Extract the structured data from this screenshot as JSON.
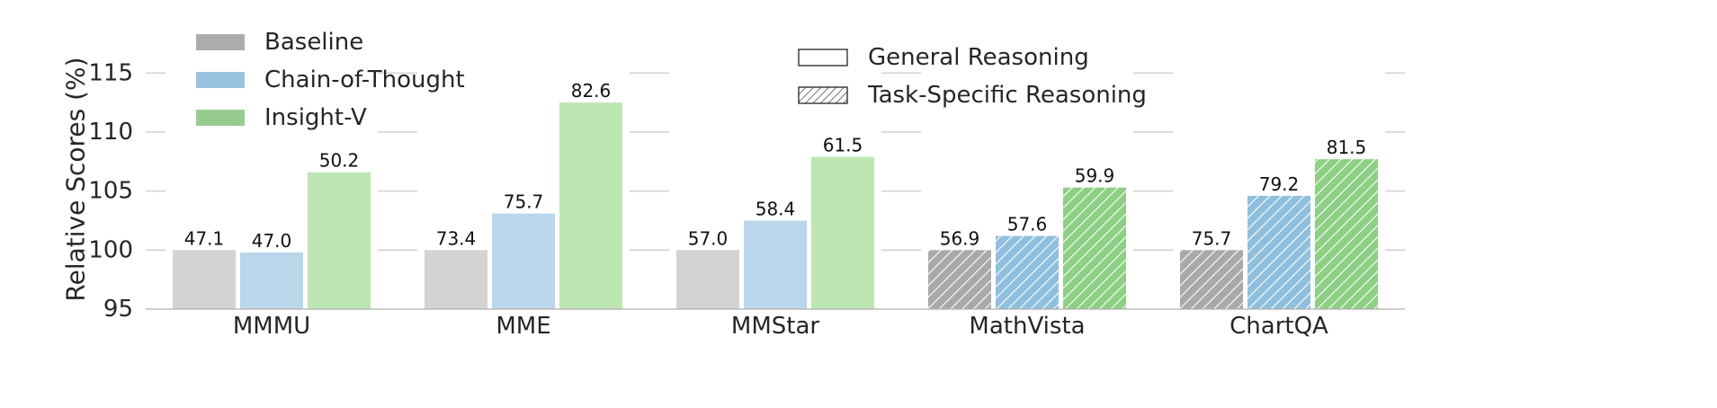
{
  "chart_data": {
    "type": "bar",
    "title": "",
    "xlabel": "",
    "ylabel": "Relative Scores (%)",
    "ylim": [
      95,
      117
    ],
    "yticks": [
      95,
      100,
      105,
      110,
      115
    ],
    "grid": "horizontal",
    "categories": [
      "MMMU",
      "MME",
      "MMStar",
      "MathVista",
      "ChartQA"
    ],
    "category_style": [
      "General Reasoning",
      "General Reasoning",
      "General Reasoning",
      "Task-Specific Reasoning",
      "Task-Specific Reasoning"
    ],
    "series": [
      {
        "name": "Baseline",
        "values": [
          100.0,
          100.0,
          100.0,
          100.0,
          100.0
        ],
        "labels": [
          "47.1",
          "73.4",
          "57.0",
          "56.9",
          "75.7"
        ],
        "color": "#d3d3d3",
        "hatch_color": "#a9a9a9"
      },
      {
        "name": "Chain-of-Thought",
        "values": [
          99.8,
          103.1,
          102.5,
          101.2,
          104.6
        ],
        "labels": [
          "47.0",
          "75.7",
          "58.4",
          "57.6",
          "79.2"
        ],
        "color": "#bad6ea",
        "hatch_color": "#8fbfdd"
      },
      {
        "name": "Insight-V",
        "values": [
          106.6,
          112.5,
          107.9,
          105.3,
          107.7
        ],
        "labels": [
          "50.2",
          "82.6",
          "61.5",
          "59.9",
          "81.5"
        ],
        "color": "#bde6b3",
        "hatch_color": "#8ece85"
      }
    ],
    "legend": {
      "placement": "top-left",
      "entries": [
        "Baseline",
        "Chain-of-Thought",
        "Insight-V"
      ],
      "swatch_colors": [
        "#acacac",
        "#98c3de",
        "#97cc91"
      ]
    },
    "style_legend": {
      "placement": "top-center",
      "entries": [
        {
          "label": "General Reasoning",
          "pattern": "solid"
        },
        {
          "label": "Task-Specific Reasoning",
          "pattern": "hatched"
        }
      ]
    }
  }
}
